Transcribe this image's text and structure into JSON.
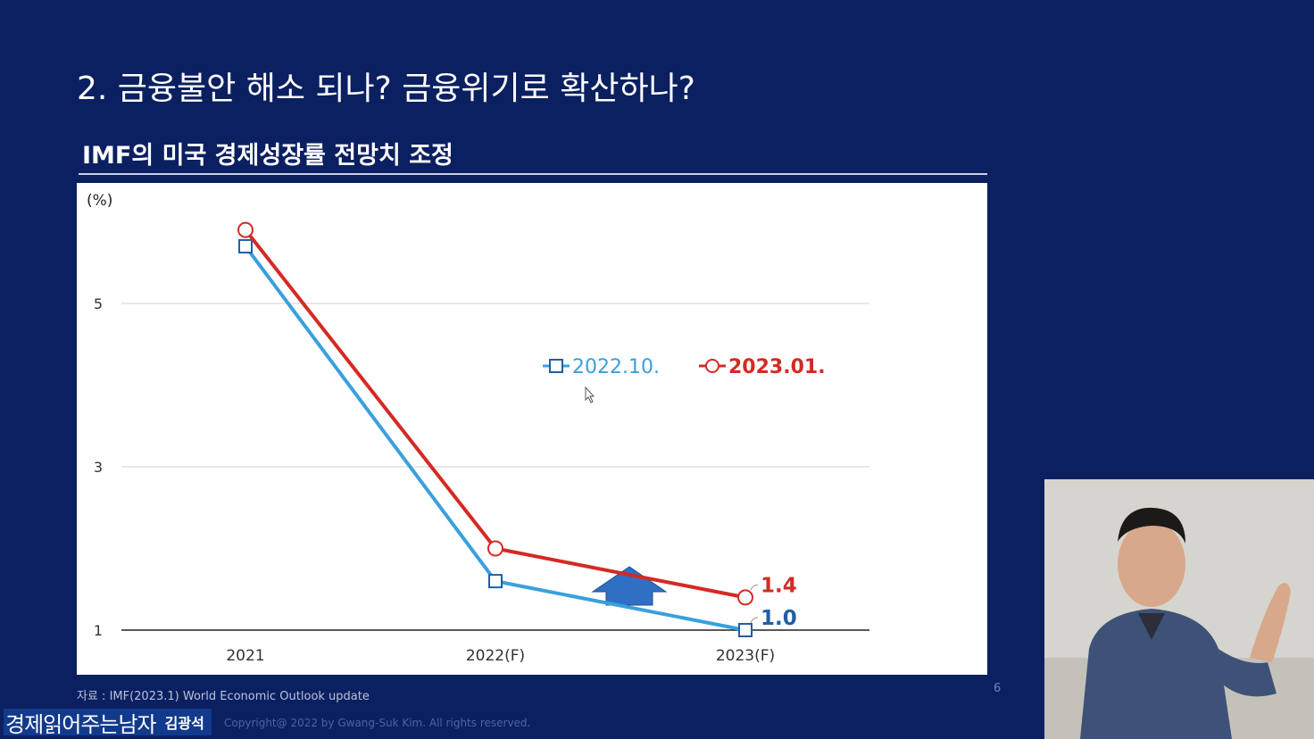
{
  "slide": {
    "title": "2. 금융불안 해소 되나? 금융위기로 확산하나?",
    "chart_heading": "IMF의 미국 경제성장률 전망치 조정",
    "source": "자료 : IMF(2023.1) World Economic Outlook update",
    "page_number": "6",
    "copyright": "Copyright@ 2022 by Gwang-Suk Kim. All rights reserved."
  },
  "channel": {
    "name": "경제읽어주는남자",
    "host": "김광석"
  },
  "colors": {
    "background": "#0b2060",
    "series_2022_10": "#3aa0dd",
    "series_2023_01": "#d42a24",
    "arrow": "#2f6fc4"
  },
  "chart_data": {
    "type": "line",
    "unit_label": "(%)",
    "categories": [
      "2021",
      "2022(F)",
      "2023(F)"
    ],
    "y_ticks": [
      "1",
      "3",
      "5"
    ],
    "ylim": [
      1,
      6.8
    ],
    "grid": true,
    "legend_position": "center-right",
    "series": [
      {
        "name": "2022.10.",
        "values": [
          5.7,
          1.6,
          1.0
        ],
        "color": "#3aa0dd",
        "marker": "square",
        "end_label": "1.0"
      },
      {
        "name": "2023.01.",
        "values": [
          5.9,
          2.0,
          1.4
        ],
        "color": "#d42a24",
        "marker": "circle",
        "end_label": "1.4"
      }
    ],
    "annotation": "upward-arrow"
  },
  "presenter": {
    "icon": "presenter-video-icon"
  }
}
